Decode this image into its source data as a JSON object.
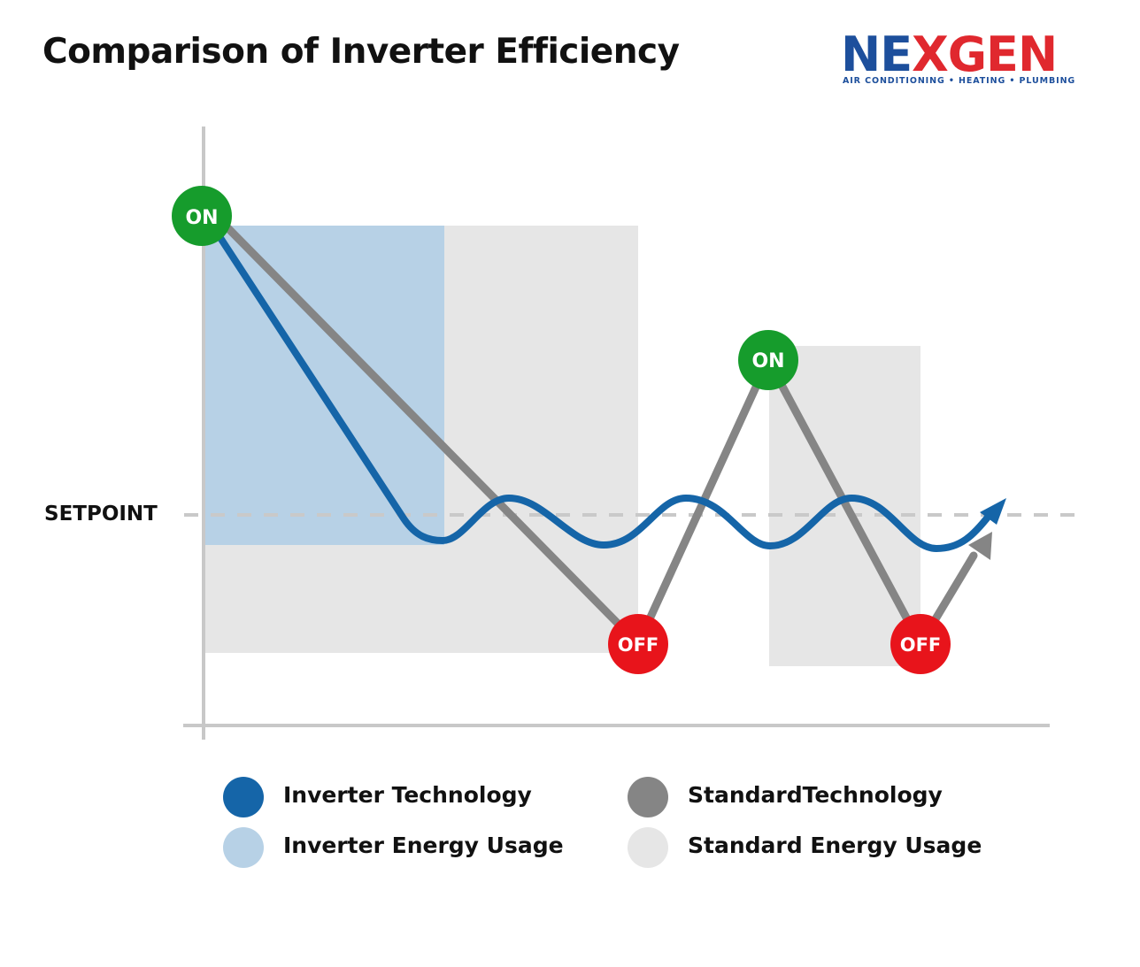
{
  "title": "Comparison of Inverter Efficiency",
  "logo": {
    "brand_left": "NE",
    "brand_mark": "X",
    "brand_right": "GEN",
    "tagline": "AIR CONDITIONING • HEATING • PLUMBING"
  },
  "setpoint_label": "SETPOINT",
  "markers": {
    "on_label": "ON",
    "off_label": "OFF"
  },
  "colors": {
    "inverter_line": "#1565a8",
    "inverter_area": "#b7d1e6",
    "standard_line": "#858585",
    "standard_area": "#e6e6e6",
    "on_marker": "#169c2c",
    "off_marker": "#e8141b",
    "setpoint_line": "#c9c9c9",
    "axis": "#c8c8c8"
  },
  "legend": [
    {
      "label": "Inverter Technology",
      "color": "#1565a8"
    },
    {
      "label": "StandardTechnology",
      "color": "#858585"
    },
    {
      "label": "Inverter Energy Usage",
      "color": "#b7d1e6"
    },
    {
      "label": "Standard Energy Usage",
      "color": "#e6e6e6"
    }
  ]
}
